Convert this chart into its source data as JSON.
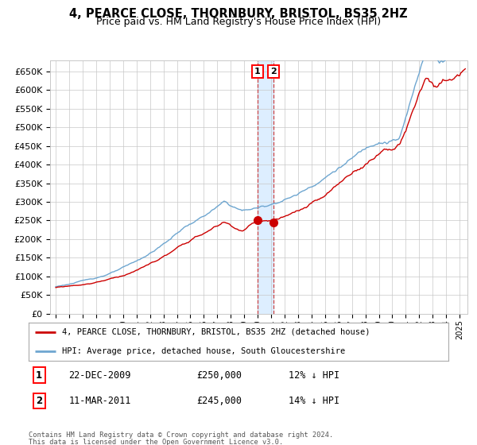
{
  "title": "4, PEARCE CLOSE, THORNBURY, BRISTOL, BS35 2HZ",
  "subtitle": "Price paid vs. HM Land Registry's House Price Index (HPI)",
  "legend_line1": "4, PEARCE CLOSE, THORNBURY, BRISTOL, BS35 2HZ (detached house)",
  "legend_line2": "HPI: Average price, detached house, South Gloucestershire",
  "transaction1_date": "22-DEC-2009",
  "transaction1_price": 250000,
  "transaction1_label": "12% ↓ HPI",
  "transaction2_date": "11-MAR-2011",
  "transaction2_price": 245000,
  "transaction2_label": "14% ↓ HPI",
  "footer1": "Contains HM Land Registry data © Crown copyright and database right 2024.",
  "footer2": "This data is licensed under the Open Government Licence v3.0.",
  "hpi_color": "#6ea6d0",
  "price_color": "#cc0000",
  "background_color": "#ffffff",
  "grid_color": "#c8c8c8",
  "highlight_color": "#ddeeff",
  "ylim": [
    0,
    680000
  ],
  "yticks": [
    0,
    50000,
    100000,
    150000,
    200000,
    250000,
    300000,
    350000,
    400000,
    450000,
    500000,
    550000,
    600000,
    650000
  ],
  "transaction1_x": 2009.97,
  "transaction2_x": 2011.19,
  "xstart": 1995.0,
  "xend": 2025.3
}
